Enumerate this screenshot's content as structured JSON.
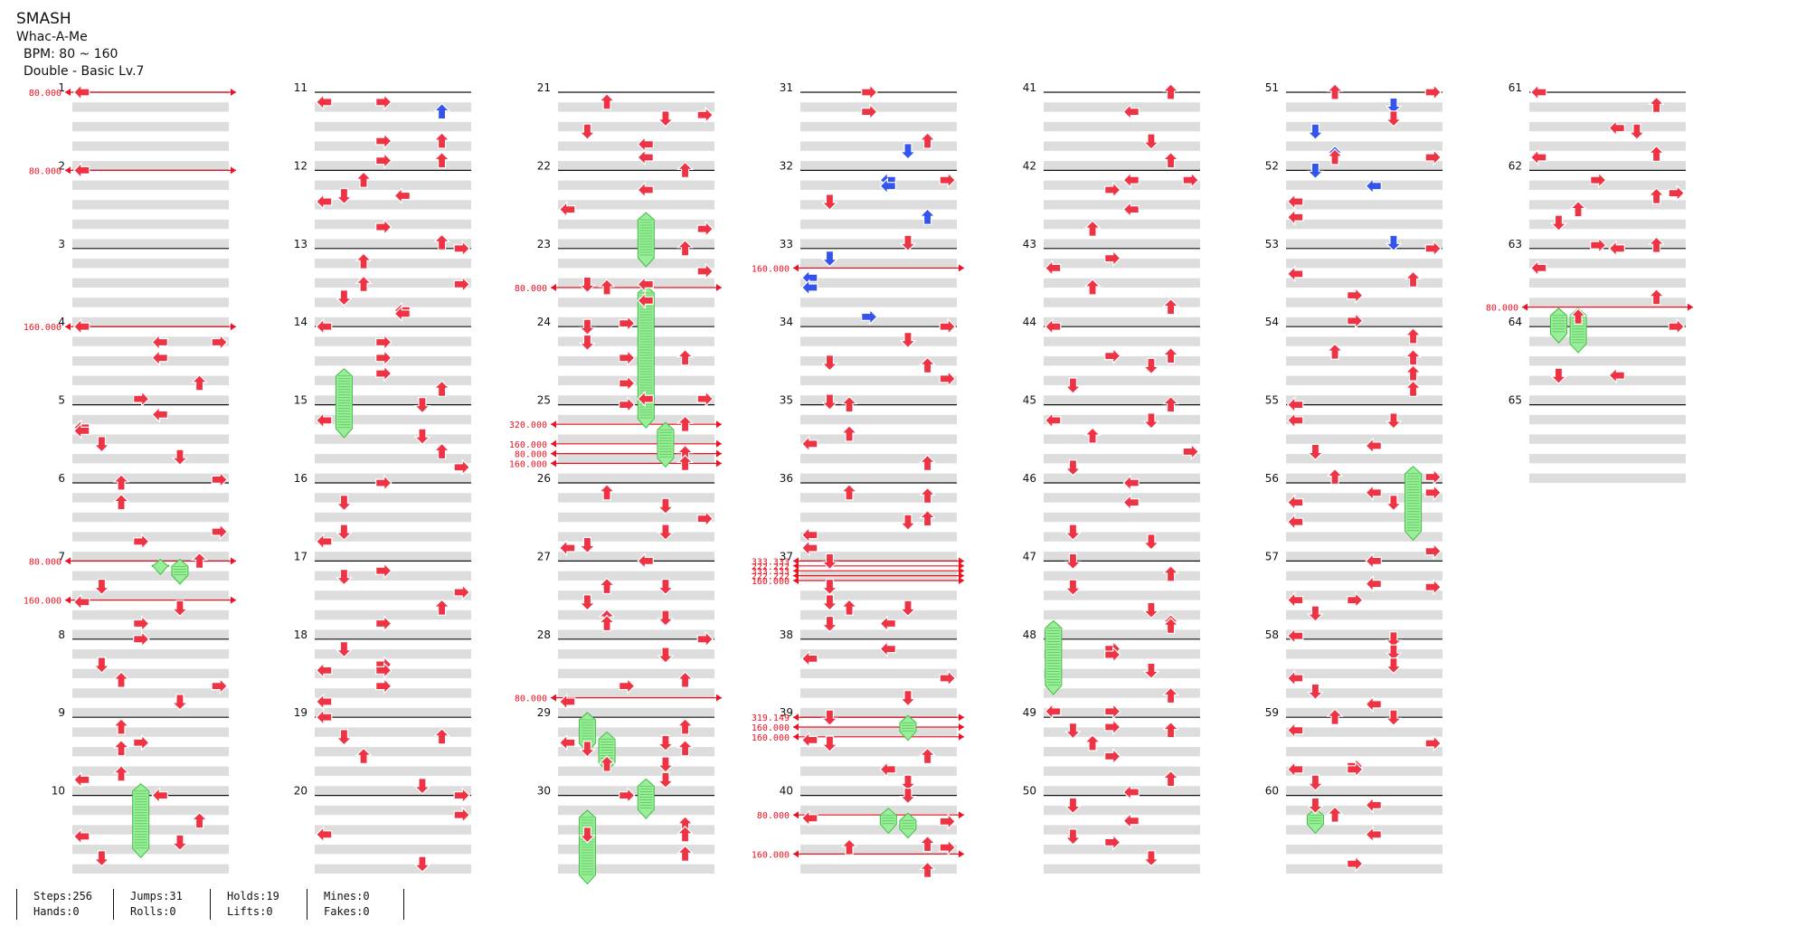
{
  "song": {
    "title": "SMASH",
    "artist": "Whac-A-Me",
    "bpm_label": "BPM: 80 ~ 160",
    "chart_label": "Double - Basic Lv.7"
  },
  "colors": {
    "arrow": "#ee3344",
    "arrow_blue": "#3355ee",
    "hold_fill": "#99ee99",
    "hold_stripe": "#44bb44",
    "bpm_line": "#ee1122",
    "band": "#dddddd",
    "measure_line": "#111111"
  },
  "stats": [
    {
      "label": "Steps",
      "value": "256"
    },
    {
      "label": "Jumps",
      "value": "31"
    },
    {
      "label": "Holds",
      "value": "19"
    },
    {
      "label": "Mines",
      "value": "0"
    },
    {
      "label": "Hands",
      "value": "0"
    },
    {
      "label": "Rolls",
      "value": "0"
    },
    {
      "label": "Lifts",
      "value": "0"
    },
    {
      "label": "Fakes",
      "value": "0"
    }
  ],
  "stats_text": {
    "steps": "Steps:256",
    "jumps": "Jumps:31",
    "holds": "Holds:19",
    "mines": "Mines:0",
    "hands": "Hands:0",
    "rolls": "Rolls:0",
    "lifts": "Lifts:0",
    "fakes": "Fakes:0"
  },
  "measures": [
    "1",
    "2",
    "3",
    "4",
    "5",
    "6",
    "7",
    "8",
    "9",
    "10",
    "11",
    "12",
    "13",
    "14",
    "15",
    "16",
    "17",
    "18",
    "19",
    "20",
    "21",
    "22",
    "23",
    "24",
    "25",
    "26",
    "27",
    "28",
    "29",
    "30",
    "31",
    "32",
    "33",
    "34",
    "35",
    "36",
    "37",
    "38",
    "39",
    "40",
    "41",
    "42",
    "43",
    "44",
    "45",
    "46",
    "47",
    "48",
    "49",
    "50",
    "51",
    "52",
    "53",
    "54",
    "55",
    "56",
    "57",
    "58",
    "59",
    "60",
    "61",
    "62",
    "63",
    "64",
    "65"
  ],
  "bpm_changes": [
    {
      "measure": 1,
      "beat": 0,
      "bpm": "80.000"
    },
    {
      "measure": 2,
      "beat": 0,
      "bpm": "80.000"
    },
    {
      "measure": 4,
      "beat": 0,
      "bpm": "160.000"
    },
    {
      "measure": 7,
      "beat": 0,
      "bpm": "80.000"
    },
    {
      "measure": 7,
      "beat": 2,
      "bpm": "160.000"
    },
    {
      "measure": 23,
      "beat": 2,
      "bpm": "80.000"
    },
    {
      "measure": 25,
      "beat": 1,
      "bpm": "320.000"
    },
    {
      "measure": 25,
      "beat": 2,
      "bpm": "160.000"
    },
    {
      "measure": 25,
      "beat": 2.5,
      "bpm": "80.000"
    },
    {
      "measure": 25,
      "beat": 3,
      "bpm": "160.000"
    },
    {
      "measure": 28,
      "beat": 3,
      "bpm": "80.000"
    },
    {
      "measure": 33,
      "beat": 1,
      "bpm": "160.000"
    },
    {
      "measure": 37,
      "beat": 0,
      "bpm": "333.333"
    },
    {
      "measure": 37,
      "beat": 0.25,
      "bpm": "222.222"
    },
    {
      "measure": 37,
      "beat": 0.5,
      "bpm": "333.333"
    },
    {
      "measure": 37,
      "beat": 0.75,
      "bpm": "222.222"
    },
    {
      "measure": 37,
      "beat": 1,
      "bpm": "160.000"
    },
    {
      "measure": 39,
      "beat": 0,
      "bpm": "319.149"
    },
    {
      "measure": 39,
      "beat": 0.5,
      "bpm": "160.000"
    },
    {
      "measure": 39,
      "beat": 1,
      "bpm": "160.000"
    },
    {
      "measure": 40,
      "beat": 1,
      "bpm": "80.000"
    },
    {
      "measure": 40,
      "beat": 3,
      "bpm": "160.000"
    },
    {
      "measure": 63,
      "beat": 3,
      "bpm": "80.000"
    }
  ],
  "holds": [
    {
      "col": 3,
      "m": 10,
      "beat": -0.5,
      "len": 3.5
    },
    {
      "col": 4,
      "m": 7,
      "beat": 0,
      "len": 0.5
    },
    {
      "col": 5,
      "m": 7,
      "beat": 0,
      "len": 1
    },
    {
      "col": 1,
      "m": 15,
      "beat": -1.75,
      "len": 3.25
    },
    {
      "col": 4,
      "m": 23,
      "beat": -1.75,
      "len": 2.5
    },
    {
      "col": 4,
      "m": 24,
      "beat": -2,
      "len": 7
    },
    {
      "col": 5,
      "m": 25,
      "beat": 1,
      "len": 2
    },
    {
      "col": 1,
      "m": 29,
      "beat": -0.15,
      "len": 1.75
    },
    {
      "col": 2,
      "m": 29,
      "beat": 0.85,
      "len": 1.75
    },
    {
      "col": 4,
      "m": 30,
      "beat": -0.75,
      "len": 1.75
    },
    {
      "col": 1,
      "m": 30,
      "beat": 0.85,
      "len": 3.5
    },
    {
      "col": 5,
      "m": 39,
      "beat": 0,
      "len": 1
    },
    {
      "col": 4,
      "m": 40,
      "beat": 0.75,
      "len": 1
    },
    {
      "col": 5,
      "m": 40,
      "beat": 1,
      "len": 1
    },
    {
      "col": 0,
      "m": 48,
      "beat": -0.85,
      "len": 3.5
    },
    {
      "col": 6,
      "m": 56,
      "beat": -0.75,
      "len": 3.5
    },
    {
      "col": 1,
      "m": 60,
      "beat": 0.75,
      "len": 1
    },
    {
      "col": 1,
      "m": 64,
      "beat": -0.85,
      "len": 1.5
    },
    {
      "col": 2,
      "m": 64,
      "beat": -0.85,
      "len": 2
    }
  ]
}
